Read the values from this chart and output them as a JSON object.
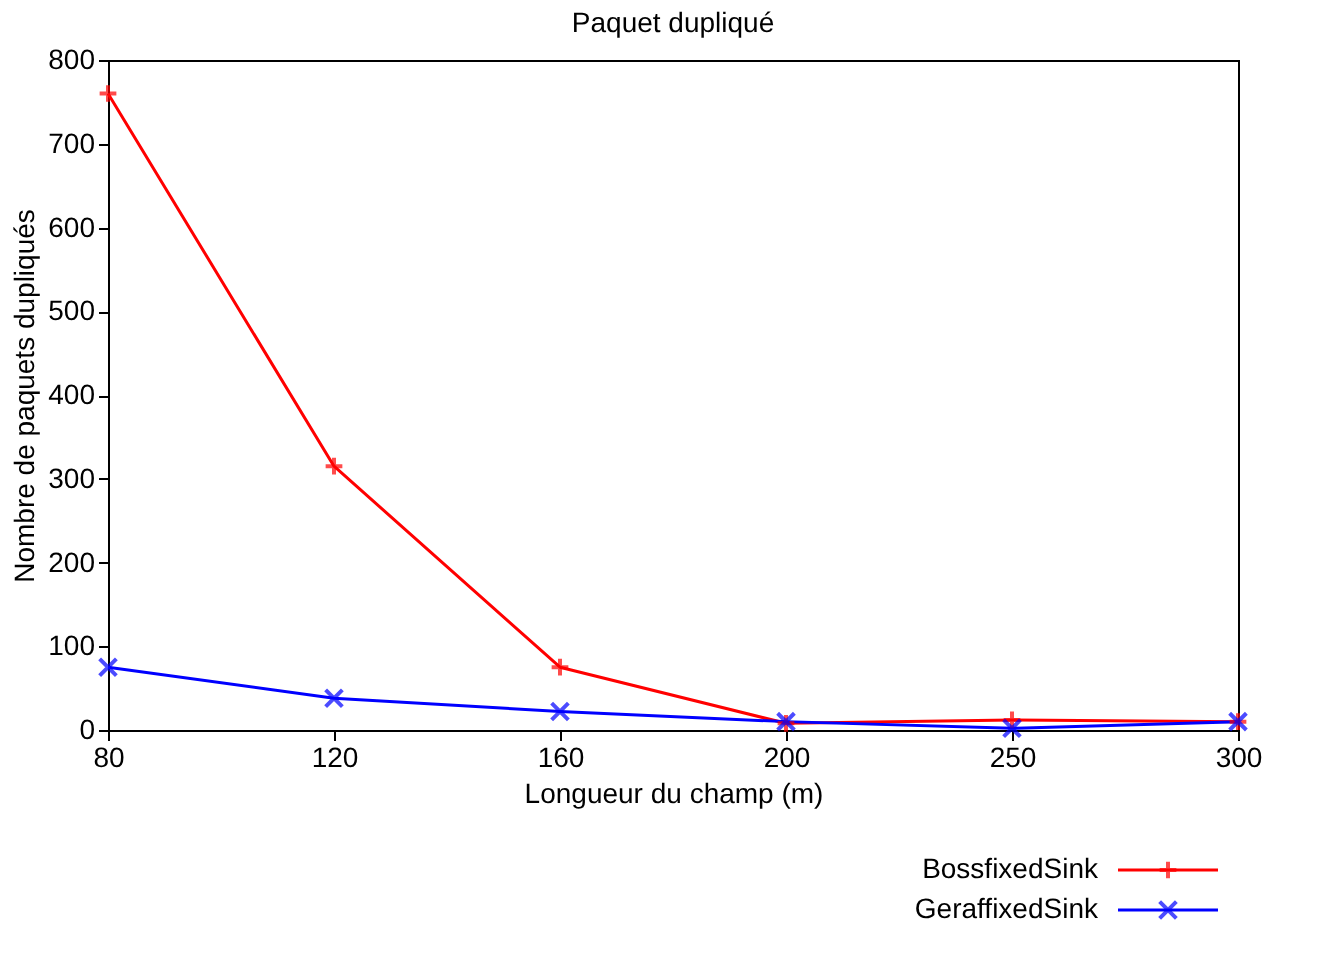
{
  "chart_data": {
    "type": "line",
    "title": "Paquet dupliqué",
    "xlabel": "Longueur du champ (m)",
    "ylabel": "Nombre de paquets dupliqués",
    "categories": [
      "80",
      "120",
      "160",
      "200",
      "250",
      "300"
    ],
    "series": [
      {
        "name": "BossfixedSink",
        "color": "#ff0000",
        "marker": "plus",
        "values": [
          760,
          315,
          75,
          8,
          12,
          10
        ]
      },
      {
        "name": "GeraffixedSink",
        "color": "#0000ff",
        "marker": "cross",
        "values": [
          75,
          38,
          22,
          10,
          2,
          10
        ]
      }
    ],
    "ylim": [
      0,
      800
    ],
    "yticks": [
      0,
      100,
      200,
      300,
      400,
      500,
      600,
      700,
      800
    ],
    "grid": false,
    "legend": "bottom right",
    "line_style": "solid"
  }
}
